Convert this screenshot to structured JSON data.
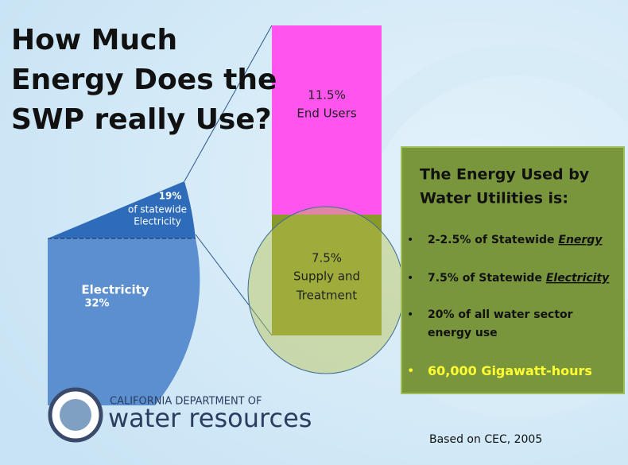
{
  "slide": {
    "title_lines": [
      "How Much",
      "Energy Does the",
      "SWP really Use?"
    ],
    "pie": {
      "slice_value": "19%",
      "slice_lines": [
        "of statewide",
        "Electricity"
      ],
      "main_label": "Electricity",
      "main_value": "32%"
    },
    "bar": {
      "top_value": "11.5%",
      "top_label": "End Users",
      "bottom_value": "7.5%",
      "bottom_lines": [
        "Supply and",
        "Treatment"
      ]
    },
    "box": {
      "heading_lines": [
        "The Energy Used by",
        "Water Utilities is:"
      ],
      "bullets": [
        {
          "text": "2-2.5% of Statewide ",
          "emphasis": "Energy"
        },
        {
          "text": "7.5% of Statewide ",
          "emphasis": "Electricity"
        },
        {
          "lines": [
            "20% of all water sector",
            "energy use"
          ]
        },
        {
          "text": "60,000 Gigawatt-hours"
        }
      ]
    },
    "logo": {
      "agency": "CALIFORNIA DEPARTMENT OF",
      "name": "water resources"
    },
    "source": "Based on CEC, 2005"
  }
}
